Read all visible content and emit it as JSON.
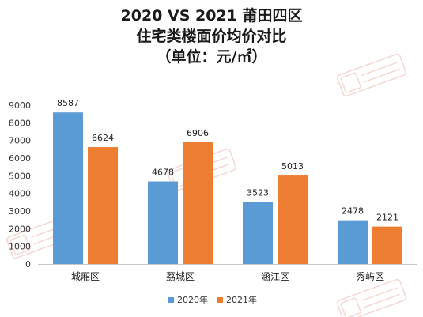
{
  "chart_data": {
    "type": "bar",
    "title": [
      "2020 VS 2021 莆田四区",
      "住宅类楼面价均价对比",
      "（单位：元/㎡）"
    ],
    "categories": [
      "城厢区",
      "荔城区",
      "涵江区",
      "秀屿区"
    ],
    "series": [
      {
        "name": "2020年",
        "values": [
          8587,
          4678,
          3523,
          2478
        ],
        "color": "#5b9bd5"
      },
      {
        "name": "2021年",
        "values": [
          6624,
          6906,
          5013,
          2121
        ],
        "color": "#ed7d31"
      }
    ],
    "ylim": [
      0,
      9000
    ],
    "yticks": [
      0,
      1000,
      2000,
      3000,
      4000,
      5000,
      6000,
      7000,
      8000,
      9000
    ],
    "grid": false,
    "legend": "bottom"
  }
}
